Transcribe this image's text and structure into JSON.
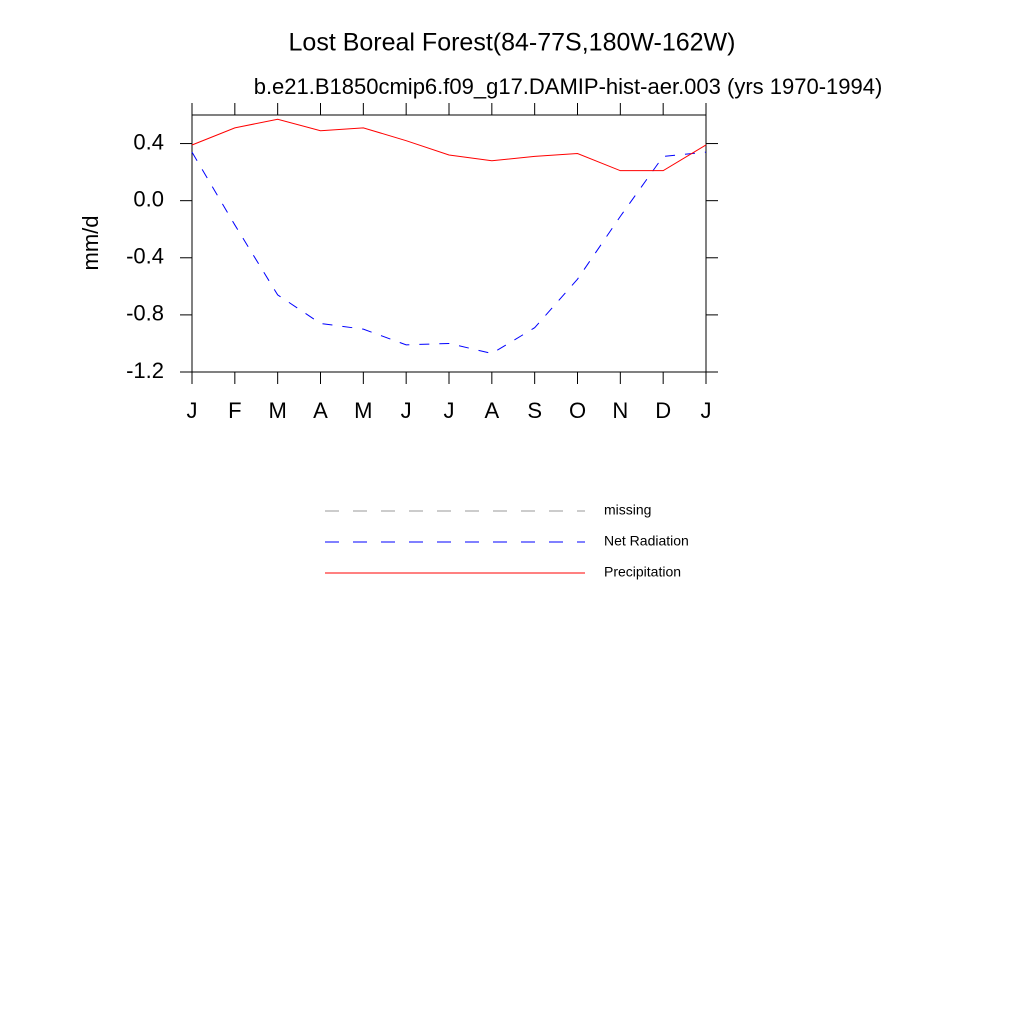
{
  "chart_data": {
    "type": "line",
    "title": "Lost Boreal Forest(84-77S,180W-162W)",
    "subtitle": "b.e21.B1850cmip6.f09_g17.DAMIP-hist-aer.003 (yrs 1970-1994)",
    "y_label": "mm/d",
    "categories": [
      "J",
      "F",
      "M",
      "A",
      "M",
      "J",
      "J",
      "A",
      "S",
      "O",
      "N",
      "D",
      "J"
    ],
    "ylim": [
      -1.2,
      0.6
    ],
    "yticks": [
      {
        "value": 0.4,
        "label": "0.4"
      },
      {
        "value": 0,
        "label": "0.0"
      },
      {
        "value": -0.4,
        "label": "-0.4"
      },
      {
        "value": -0.8,
        "label": "-0.8"
      },
      {
        "value": -1.2,
        "label": "-1.2"
      }
    ],
    "series": [
      {
        "name": "missing",
        "color": "#999999",
        "dashed": true,
        "values": [
          null,
          null,
          null,
          null,
          null,
          null,
          null,
          null,
          null,
          null,
          null,
          null,
          null
        ]
      },
      {
        "name": "Net Radiation",
        "color": "#0000ff",
        "dashed": true,
        "values": [
          0.34,
          -0.17,
          -0.66,
          -0.86,
          -0.9,
          -1.01,
          -1.0,
          -1.07,
          -0.89,
          -0.55,
          -0.11,
          0.31,
          0.34
        ]
      },
      {
        "name": "Precipitation",
        "color": "#ff0000",
        "dashed": false,
        "values": [
          0.39,
          0.51,
          0.57,
          0.49,
          0.51,
          0.42,
          0.32,
          0.28,
          0.31,
          0.33,
          0.21,
          0.21,
          0.39
        ]
      }
    ]
  }
}
